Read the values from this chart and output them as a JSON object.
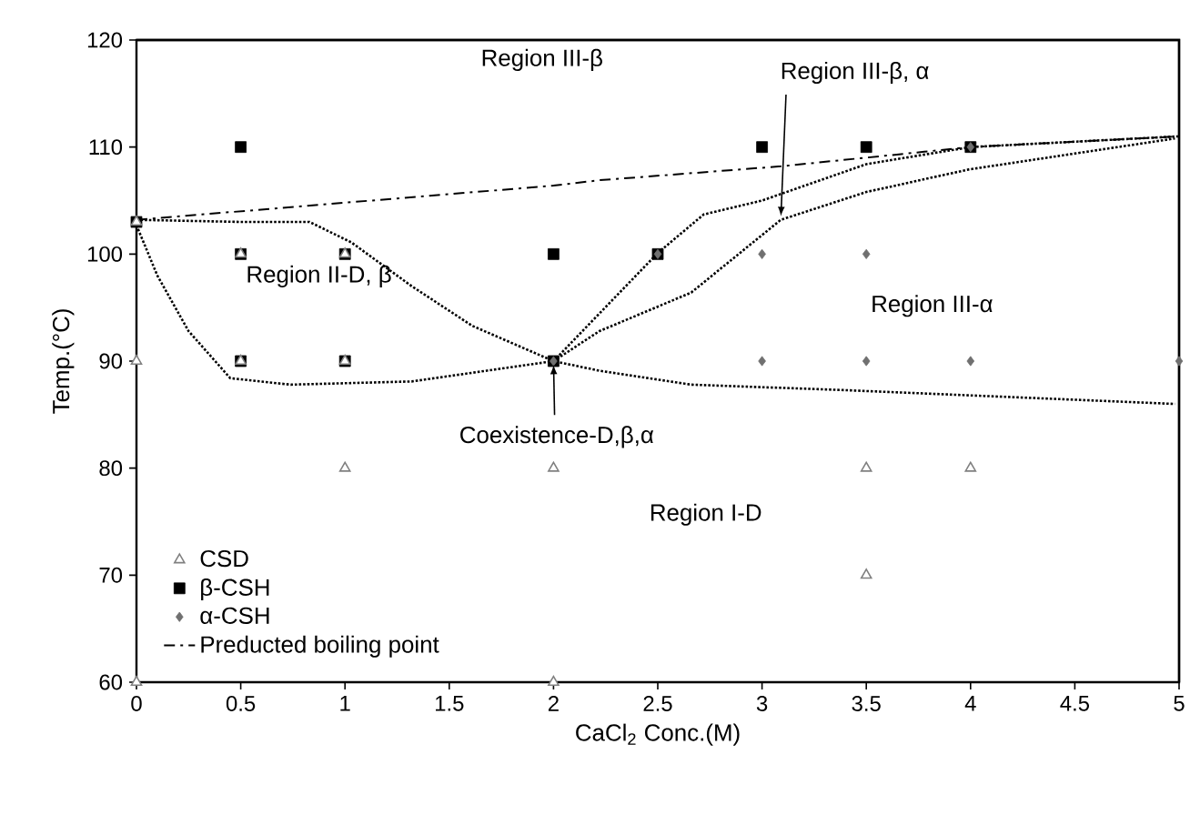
{
  "chart_data": {
    "type": "scatter",
    "xlabel": "CaCl$_{2}$ Conc.(M)",
    "ylabel": "Temp.(°C)",
    "xlim": [
      0,
      5
    ],
    "ylim": [
      60,
      120
    ],
    "xticks": [
      0,
      0.5,
      1,
      1.5,
      2,
      2.5,
      3,
      3.5,
      4,
      4.5,
      5
    ],
    "yticks": [
      60,
      70,
      80,
      90,
      100,
      110,
      120
    ],
    "grid": false,
    "legend": "bottom left",
    "series": [
      {
        "name": "CSD",
        "color": "#808080",
        "marker": "triangle",
        "x": [
          0,
          0,
          0,
          0.5,
          0.5,
          1,
          1,
          1,
          2,
          2,
          3.5,
          3.5,
          4
        ],
        "values": [
          60,
          90,
          103,
          100,
          90,
          100,
          90,
          80,
          80,
          60,
          80,
          70,
          80
        ]
      },
      {
        "name": "β-CSH",
        "color": "#000000",
        "marker": "square",
        "x": [
          0,
          0.5,
          0.5,
          0.5,
          1,
          1,
          2,
          2,
          2.5,
          3,
          3.5,
          4
        ],
        "values": [
          103,
          110,
          100,
          90,
          100,
          90,
          100,
          90,
          100,
          110,
          110,
          110
        ]
      },
      {
        "name": "α-CSH",
        "color": "#707070",
        "marker": "diamond",
        "x": [
          2,
          2.5,
          3,
          3,
          3.5,
          3.5,
          4,
          4,
          5
        ],
        "values": [
          90,
          100,
          100,
          90,
          100,
          90,
          90,
          110,
          90
        ]
      },
      {
        "name": "Preducted boiling point",
        "type": "line",
        "color": "#000000",
        "marker": "none",
        "line_style": "dashdot",
        "x": [
          0,
          1,
          2,
          2.22,
          3.09,
          4,
          5
        ],
        "values": [
          103.2,
          104.8,
          106.4,
          106.9,
          108.2,
          110,
          111
        ]
      },
      {
        "type": "line",
        "color": "#000000",
        "marker": "none",
        "line_style": "dotted",
        "x": [
          0,
          0.51,
          0.83,
          1.03,
          1.32,
          1.61,
          2
        ],
        "values": [
          103.2,
          103,
          103,
          101.1,
          97,
          93.3,
          90
        ]
      },
      {
        "type": "line",
        "color": "#000000",
        "marker": "none",
        "line_style": "dotted",
        "x": [
          0,
          0.1,
          0.25,
          0.45,
          0.74,
          1.32,
          2,
          2.22,
          2.66,
          3.38,
          4.98
        ],
        "values": [
          102.7,
          98,
          92.8,
          88.4,
          87.8,
          88.1,
          90,
          89.1,
          87.8,
          87.3,
          86
        ]
      },
      {
        "type": "line",
        "color": "#000000",
        "marker": "none",
        "line_style": "dotted",
        "x": [
          2,
          2.5,
          2.72,
          3,
          3.5,
          4,
          5
        ],
        "values": [
          90,
          100.1,
          103.7,
          105,
          108.4,
          110,
          111
        ]
      },
      {
        "type": "line",
        "color": "#000000",
        "marker": "none",
        "line_style": "dotted",
        "x": [
          2,
          2.22,
          2.66,
          3.09,
          3.5,
          3.99,
          4.98
        ],
        "values": [
          90,
          92.8,
          96.4,
          103.2,
          105.8,
          107.9,
          110.8
        ]
      }
    ],
    "annotations": [
      "Region III-β",
      {
        "text": "Region III-β, α",
        "x": 3.09,
        "y": 103.2
      },
      "Region II-D, β",
      "Region III-α",
      {
        "text": "Coexistence-D,β,α",
        "x": 2,
        "y": 90
      },
      "Region I-D"
    ]
  }
}
